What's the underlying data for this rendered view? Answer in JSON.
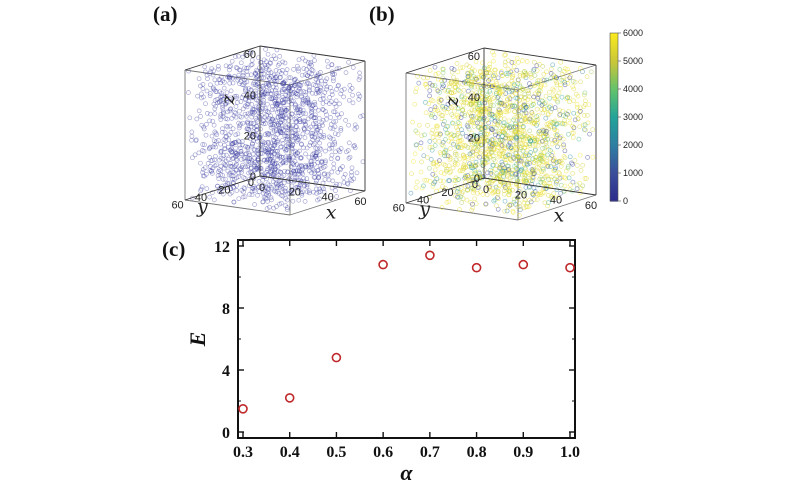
{
  "chart_data": [
    {
      "panel": "(a)",
      "type": "scatter",
      "dimension": "3d",
      "axes": {
        "x": {
          "label": "x",
          "ticks": [
            0,
            20,
            40,
            60
          ],
          "range": [
            0,
            64
          ]
        },
        "y": {
          "label": "y",
          "ticks": [
            0,
            20,
            40,
            60
          ],
          "range": [
            0,
            64
          ]
        },
        "z": {
          "label": "z",
          "ticks": [
            0,
            20,
            40,
            60
          ],
          "range": [
            0,
            64
          ]
        }
      },
      "point_color": "#3a3ba0",
      "grid": false
    },
    {
      "panel": "(b)",
      "type": "scatter",
      "dimension": "3d",
      "axes": {
        "x": {
          "label": "x",
          "ticks": [
            0,
            20,
            40,
            60
          ],
          "range": [
            0,
            64
          ]
        },
        "y": {
          "label": "y",
          "ticks": [
            0,
            20,
            40,
            60
          ],
          "range": [
            0,
            64
          ]
        },
        "z": {
          "label": "z",
          "ticks": [
            0,
            20,
            40,
            60
          ],
          "range": [
            0,
            64
          ]
        }
      },
      "colorbar": {
        "ticks": [
          0,
          1000,
          2000,
          3000,
          4000,
          5000,
          6000
        ],
        "range": [
          0,
          6000
        ],
        "colormap": [
          "#2c2c8c",
          "#3b4e9b",
          "#2d7fa3",
          "#22a39a",
          "#61c26b",
          "#c8c63a",
          "#f8e81e"
        ]
      },
      "grid": false
    },
    {
      "panel": "(c)",
      "type": "scatter",
      "xlabel": "α",
      "ylabel": "E",
      "xlim": [
        0.3,
        1.0
      ],
      "ylim": [
        0,
        12
      ],
      "xticks": [
        "0.3",
        "0.4",
        "0.5",
        "0.6",
        "0.7",
        "0.8",
        "0.9",
        "1.0"
      ],
      "yticks": [
        "0",
        "4",
        "8",
        "12"
      ],
      "marker": "open-circle",
      "marker_color": "#c0282a",
      "x": [
        0.3,
        0.4,
        0.5,
        0.6,
        0.7,
        0.8,
        0.9,
        1.0
      ],
      "y": [
        1.5,
        2.2,
        4.8,
        10.8,
        11.4,
        10.6,
        10.8,
        10.6
      ],
      "grid": false
    }
  ]
}
